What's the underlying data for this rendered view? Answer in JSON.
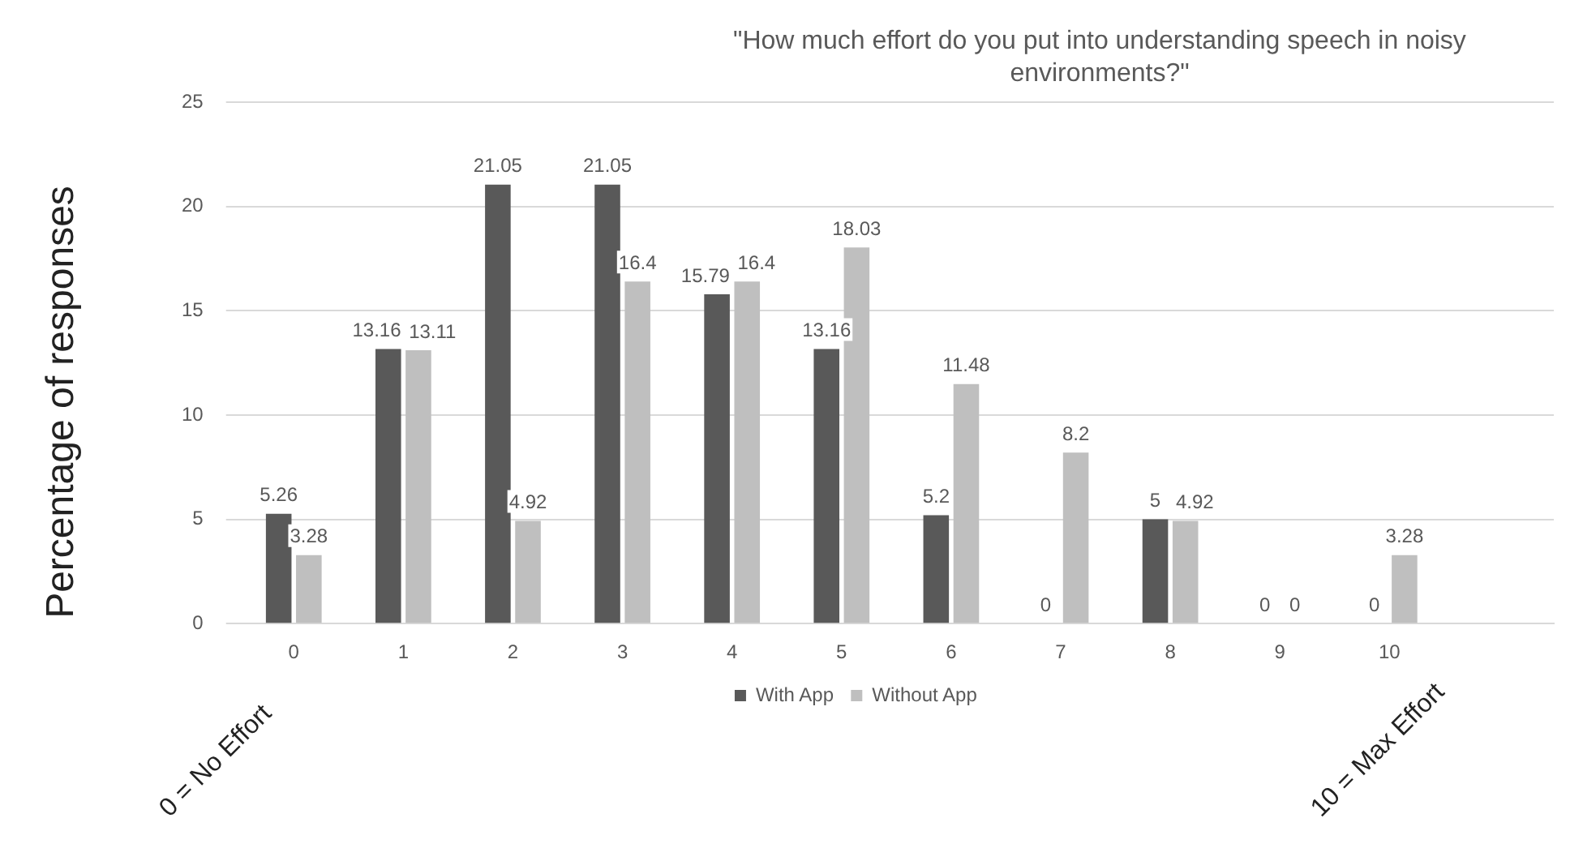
{
  "chart_data": {
    "type": "bar",
    "title": "\"How much effort do you put into understanding speech in noisy environments?\"",
    "ylabel": "Percentage of responses",
    "categories": [
      "0",
      "1",
      "2",
      "3",
      "4",
      "5",
      "6",
      "7",
      "8",
      "9",
      "10",
      null
    ],
    "series": [
      {
        "name": "With App",
        "color": "#595959",
        "values": [
          5.26,
          13.16,
          21.05,
          21.05,
          15.79,
          13.16,
          5.2,
          0,
          5,
          0,
          0,
          null
        ]
      },
      {
        "name": "Without App",
        "color": "#bfbfbf",
        "values": [
          3.28,
          13.11,
          4.92,
          16.4,
          16.4,
          18.03,
          11.48,
          8.2,
          4.92,
          0,
          3.28,
          null
        ]
      }
    ],
    "ylim": [
      0,
      25
    ],
    "yticks": [
      0,
      5,
      10,
      15,
      20,
      25
    ],
    "grid": "y",
    "legend": "bottom",
    "data_labels": true,
    "annotations": [
      "0 = No Effort",
      "10 = Max Effort"
    ]
  }
}
